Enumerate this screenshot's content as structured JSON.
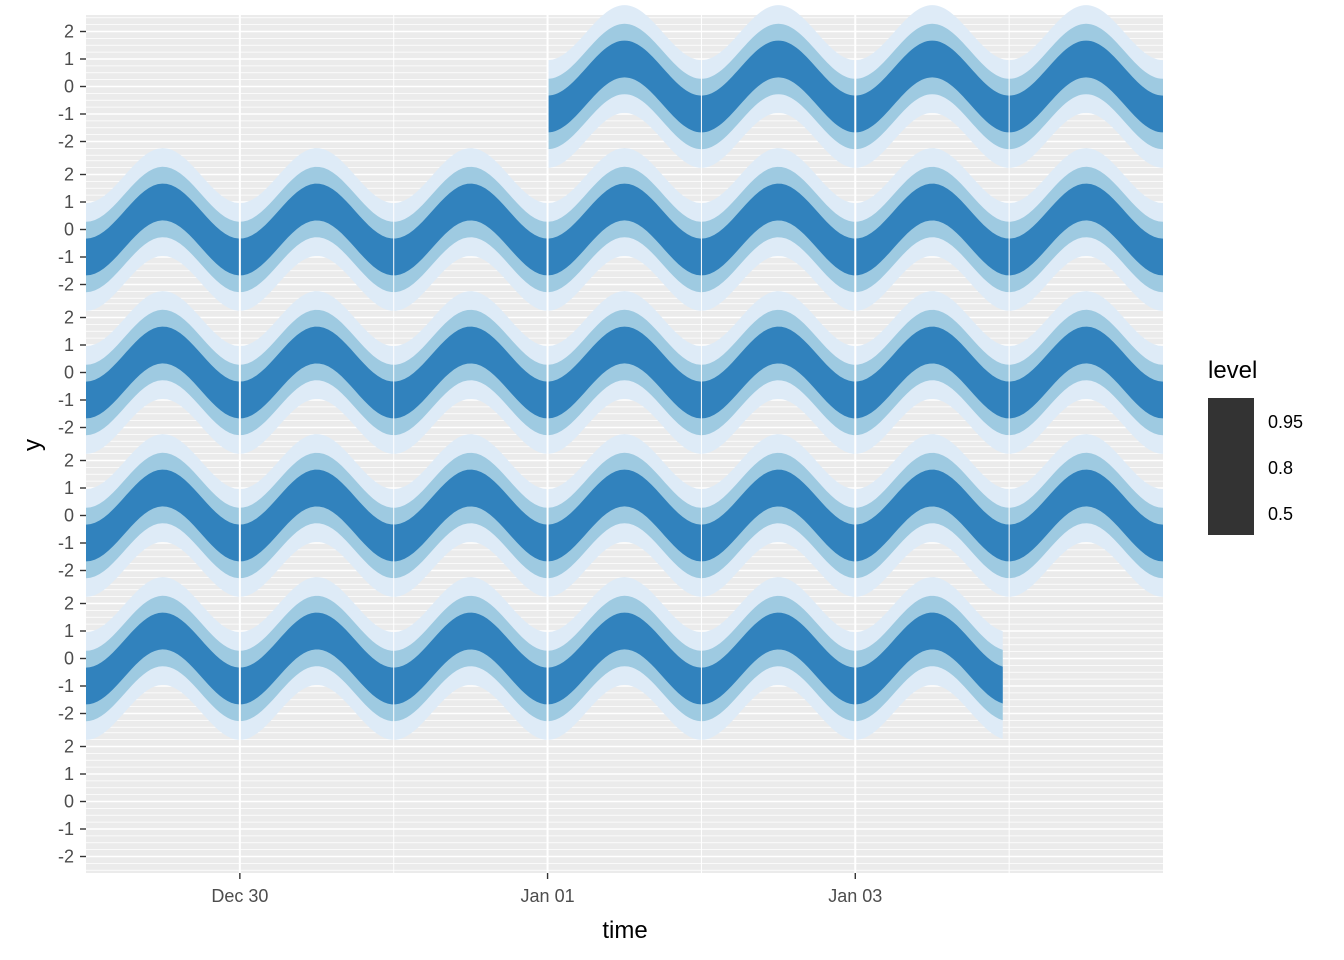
{
  "chart_data": {
    "type": "area",
    "title": "",
    "xlabel": "time",
    "ylabel": "y",
    "x_ticks": [
      "Dec 30",
      "Jan 01",
      "Jan 03"
    ],
    "y_ticks": [
      "2",
      "1",
      "0",
      "-1",
      "-2"
    ],
    "ylim": [
      -2.6,
      2.6
    ],
    "legend": {
      "title": "level",
      "entries": [
        "0.95",
        "0.8",
        "0.5"
      ],
      "placement": "right"
    },
    "colors": {
      "level_0.95": "#deebf7",
      "level_0.8": "#9ecae1",
      "level_0.5": "#3182bd",
      "panel_bg": "#ebebeb",
      "grid": "#ffffff",
      "legend_key": "#333333"
    },
    "band": {
      "center": "sin(2*pi*t/period)",
      "period_hours": 24,
      "half_width": {
        "0.5": 0.67,
        "0.8": 1.28,
        "0.95": 1.96
      }
    },
    "rows": [
      {
        "row": 1,
        "start": "2022-01-01 00:00",
        "end": "2022-01-05 00:00"
      },
      {
        "row": 2,
        "start": "2021-12-29 00:00",
        "end": "2022-01-05 00:00"
      },
      {
        "row": 3,
        "start": "2021-12-29 00:00",
        "end": "2022-01-05 00:00"
      },
      {
        "row": 4,
        "start": "2021-12-29 00:00",
        "end": "2022-01-05 00:00"
      },
      {
        "row": 5,
        "start": "2021-12-29 00:00",
        "end": "2022-01-03 23:00"
      },
      {
        "row": 6,
        "start": null,
        "end": null
      }
    ]
  }
}
